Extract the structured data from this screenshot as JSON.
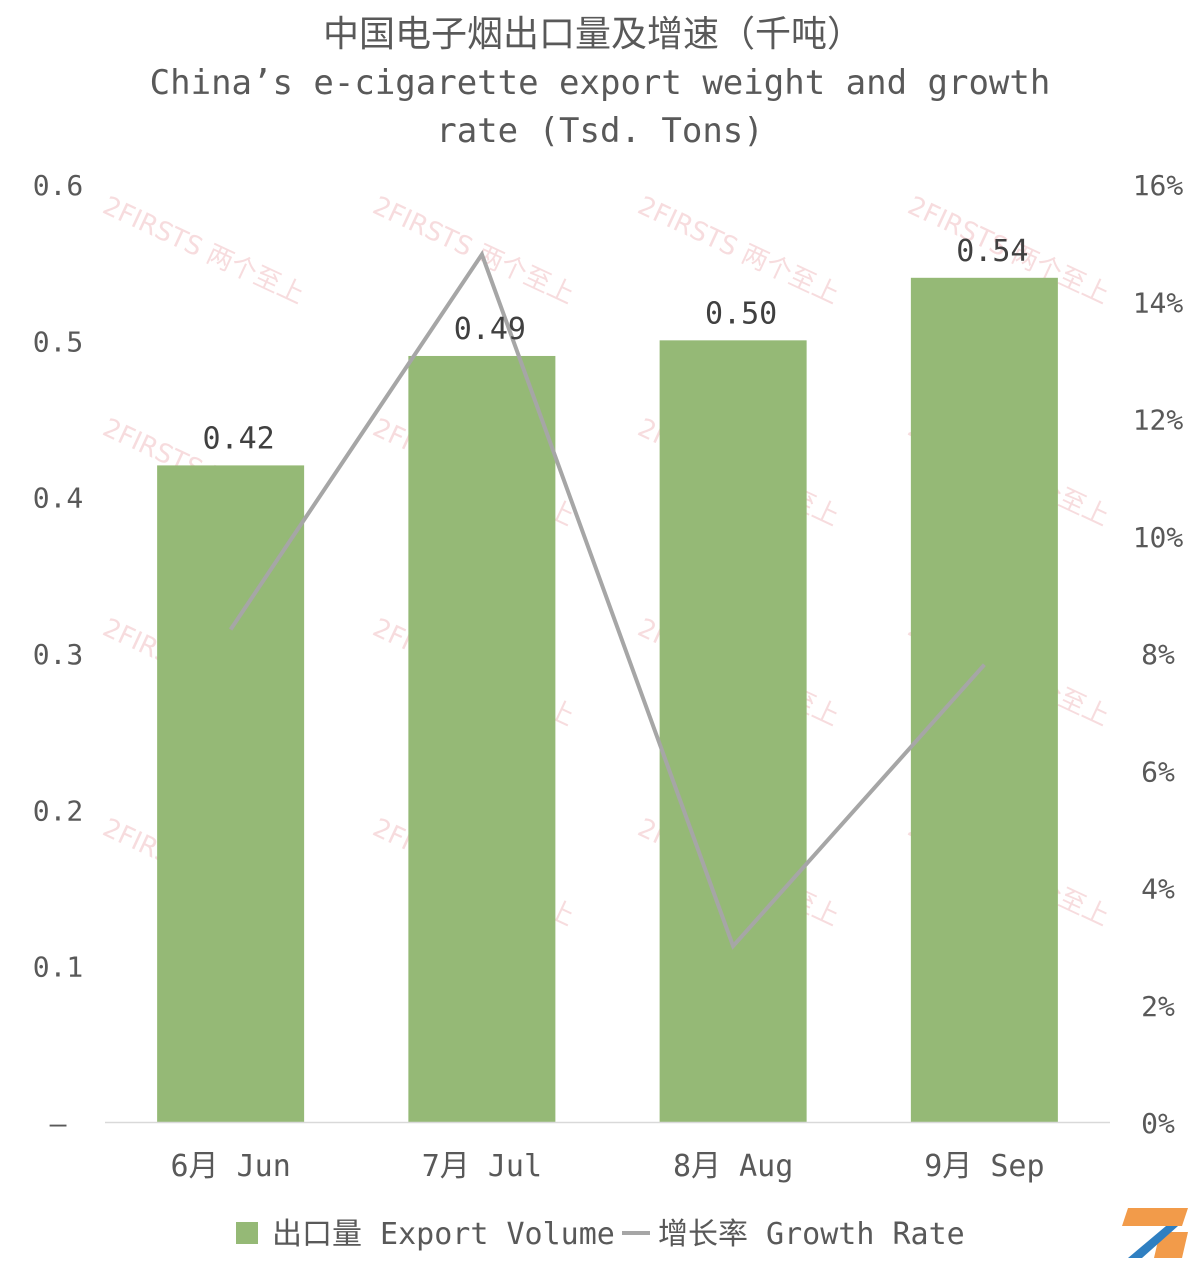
{
  "chart_data": {
    "type": "bar",
    "title": "中国电子烟出口量及增速（千吨）",
    "subtitle_lines": [
      "China’s e-cigarette export weight and growth",
      "rate (Tsd. Tons)"
    ],
    "categories": [
      "6月 Jun",
      "7月 Jul",
      "8月 Aug",
      "9月 Sep"
    ],
    "series": [
      {
        "name": "出口量 Export Volume",
        "kind": "bar",
        "axis": "left",
        "color": "#95b976",
        "values": [
          0.42,
          0.49,
          0.5,
          0.54
        ],
        "data_labels": [
          "0.42",
          "0.49",
          "0.50",
          "0.54"
        ]
      },
      {
        "name": "增长率 Growth Rate",
        "kind": "line",
        "axis": "right",
        "color": "#a6a6a6",
        "values": [
          0.084,
          0.148,
          0.03,
          0.078
        ]
      }
    ],
    "y_left": {
      "lim": [
        0,
        0.6
      ],
      "ticks": [
        0,
        0.1,
        0.2,
        0.3,
        0.4,
        0.5,
        0.6
      ],
      "tick_labels": [
        "–",
        "0.1",
        "0.2",
        "0.3",
        "0.4",
        "0.5",
        "0.6"
      ]
    },
    "y_right": {
      "lim": [
        0,
        0.16
      ],
      "ticks": [
        0,
        0.02,
        0.04,
        0.06,
        0.08,
        0.1,
        0.12,
        0.14,
        0.16
      ],
      "tick_labels": [
        "0%",
        "2%",
        "4%",
        "6%",
        "8%",
        "10%",
        "12%",
        "14%",
        "16%"
      ]
    },
    "grid": false,
    "legend_position": "bottom",
    "watermark": "2FIRSTS 两个至上"
  },
  "colors": {
    "text": "#595959",
    "axis": "#d9d9d9",
    "watermark": "#f2c4c8"
  },
  "logo_icon": "2firsts-logo-icon"
}
